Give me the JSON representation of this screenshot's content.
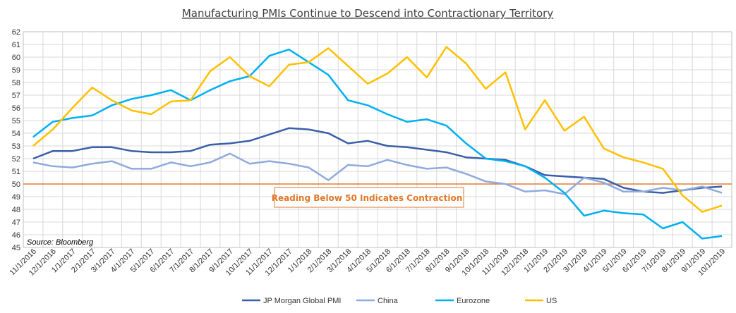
{
  "chart_data": {
    "type": "line",
    "title": "Manufacturing PMIs Continue to Descend into Contractionary Territory",
    "xlabel": "",
    "ylabel": "",
    "ylim": [
      45,
      62
    ],
    "yticks": [
      45,
      46,
      47,
      48,
      49,
      50,
      51,
      52,
      53,
      54,
      55,
      56,
      57,
      58,
      59,
      60,
      61,
      62
    ],
    "grid": true,
    "legend_position": "bottom",
    "x": [
      "11/1/2016",
      "12/1/2016",
      "1/1/2017",
      "2/1/2017",
      "3/1/2017",
      "4/1/2017",
      "5/1/2017",
      "6/1/2017",
      "7/1/2017",
      "8/1/2017",
      "9/1/2017",
      "10/1/2017",
      "11/1/2017",
      "12/1/2017",
      "1/1/2018",
      "2/1/2018",
      "3/1/2018",
      "4/1/2018",
      "5/1/2018",
      "6/1/2018",
      "7/1/2018",
      "8/1/2018",
      "9/1/2018",
      "10/1/2018",
      "11/1/2018",
      "12/1/2018",
      "1/1/2019",
      "2/1/2019",
      "3/1/2019",
      "4/1/2019",
      "5/1/2019",
      "6/1/2019",
      "7/1/2019",
      "8/1/2019",
      "9/1/2019",
      "10/1/2019"
    ],
    "series": [
      {
        "name": "JP Morgan Global PMI",
        "color": "#3A5FA8",
        "values": [
          52.0,
          52.6,
          52.6,
          52.9,
          52.9,
          52.6,
          52.5,
          52.5,
          52.6,
          53.1,
          53.2,
          53.4,
          53.9,
          54.4,
          54.3,
          54.0,
          53.2,
          53.4,
          53.0,
          52.9,
          52.7,
          52.5,
          52.1,
          52.0,
          51.9,
          51.4,
          50.7,
          50.6,
          50.5,
          50.4,
          49.7,
          49.4,
          49.3,
          49.5,
          49.7,
          49.8
        ]
      },
      {
        "name": "China",
        "color": "#8FAADC",
        "values": [
          51.7,
          51.4,
          51.3,
          51.6,
          51.8,
          51.2,
          51.2,
          51.7,
          51.4,
          51.7,
          52.4,
          51.6,
          51.8,
          51.6,
          51.3,
          50.3,
          51.5,
          51.4,
          51.9,
          51.5,
          51.2,
          51.3,
          50.8,
          50.2,
          50.0,
          49.4,
          49.5,
          49.2,
          50.5,
          50.1,
          49.4,
          49.4,
          49.7,
          49.5,
          49.8,
          49.3
        ]
      },
      {
        "name": "Eurozone",
        "color": "#00B0F0",
        "values": [
          53.7,
          54.9,
          55.2,
          55.4,
          56.2,
          56.7,
          57.0,
          57.4,
          56.6,
          57.4,
          58.1,
          58.5,
          60.1,
          60.6,
          59.6,
          58.6,
          56.6,
          56.2,
          55.5,
          54.9,
          55.1,
          54.6,
          53.2,
          52.0,
          51.8,
          51.4,
          50.5,
          49.3,
          47.5,
          47.9,
          47.7,
          47.6,
          46.5,
          47.0,
          45.7,
          45.9
        ]
      },
      {
        "name": "US",
        "color": "#FFC000",
        "values": [
          53.0,
          54.3,
          56.0,
          57.6,
          56.6,
          55.8,
          55.5,
          56.5,
          56.6,
          58.9,
          60.0,
          58.5,
          57.7,
          59.4,
          59.6,
          60.7,
          59.3,
          57.9,
          58.7,
          60.0,
          58.4,
          60.8,
          59.5,
          57.5,
          58.8,
          54.3,
          56.6,
          54.2,
          55.3,
          52.8,
          52.1,
          51.7,
          51.2,
          49.1,
          47.8,
          48.3
        ]
      }
    ],
    "reference_line": {
      "value": 50,
      "color": "#E07B39"
    },
    "annotation": "Reading Below 50 Indicates Contraction",
    "source": "Source: Bloomberg"
  }
}
